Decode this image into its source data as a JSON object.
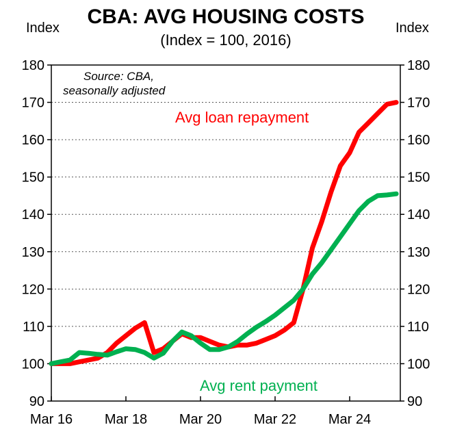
{
  "chart_data": {
    "type": "line",
    "title": "CBA: AVG HOUSING COSTS",
    "subtitle": "(Index = 100, 2016)",
    "ylabel_left": "Index",
    "ylabel_right": "Index",
    "source_note": [
      "Source: CBA,",
      "seasonally adjusted"
    ],
    "ylim": [
      90,
      180
    ],
    "yticks": [
      90,
      100,
      110,
      120,
      130,
      140,
      150,
      160,
      170,
      180
    ],
    "xlim": [
      2016.0,
      2025.25
    ],
    "xticks": [
      {
        "label": "Mar 16",
        "x": 2016.0
      },
      {
        "label": "Mar 18",
        "x": 2018.0
      },
      {
        "label": "Mar 20",
        "x": 2020.0
      },
      {
        "label": "Mar 22",
        "x": 2022.0
      },
      {
        "label": "Mar 24",
        "x": 2024.0
      }
    ],
    "grid": true,
    "series": [
      {
        "name": "Avg loan repayment",
        "color": "#ff0000",
        "label_position": "upper-middle",
        "points": [
          [
            2016.0,
            100.0
          ],
          [
            2016.25,
            100.0
          ],
          [
            2016.5,
            100.0
          ],
          [
            2016.75,
            100.5
          ],
          [
            2017.0,
            101.0
          ],
          [
            2017.25,
            101.5
          ],
          [
            2017.5,
            103.0
          ],
          [
            2017.75,
            105.5
          ],
          [
            2018.0,
            107.5
          ],
          [
            2018.25,
            109.5
          ],
          [
            2018.5,
            111.0
          ],
          [
            2018.75,
            103.0
          ],
          [
            2019.0,
            104.0
          ],
          [
            2019.25,
            106.0
          ],
          [
            2019.5,
            108.0
          ],
          [
            2019.75,
            107.0
          ],
          [
            2020.0,
            107.0
          ],
          [
            2020.25,
            106.0
          ],
          [
            2020.5,
            105.0
          ],
          [
            2020.75,
            104.5
          ],
          [
            2021.0,
            105.0
          ],
          [
            2021.25,
            105.0
          ],
          [
            2021.5,
            105.5
          ],
          [
            2021.75,
            106.5
          ],
          [
            2022.0,
            107.5
          ],
          [
            2022.25,
            109.0
          ],
          [
            2022.5,
            111.0
          ],
          [
            2022.75,
            120.0
          ],
          [
            2023.0,
            131.0
          ],
          [
            2023.25,
            138.0
          ],
          [
            2023.5,
            146.0
          ],
          [
            2023.75,
            153.0
          ],
          [
            2024.0,
            156.5
          ],
          [
            2024.25,
            162.0
          ],
          [
            2024.5,
            164.5
          ],
          [
            2024.75,
            167.0
          ],
          [
            2025.0,
            169.5
          ],
          [
            2025.25,
            170.0
          ]
        ]
      },
      {
        "name": "Avg rent payment",
        "color": "#00b050",
        "label_position": "bottom-right",
        "points": [
          [
            2016.0,
            100.0
          ],
          [
            2016.25,
            100.5
          ],
          [
            2016.5,
            101.0
          ],
          [
            2016.75,
            103.0
          ],
          [
            2017.0,
            102.8
          ],
          [
            2017.25,
            102.5
          ],
          [
            2017.5,
            102.3
          ],
          [
            2017.75,
            103.2
          ],
          [
            2018.0,
            104.0
          ],
          [
            2018.25,
            103.8
          ],
          [
            2018.5,
            103.0
          ],
          [
            2018.75,
            101.5
          ],
          [
            2019.0,
            102.8
          ],
          [
            2019.25,
            106.0
          ],
          [
            2019.5,
            108.5
          ],
          [
            2019.75,
            107.5
          ],
          [
            2020.0,
            105.5
          ],
          [
            2020.25,
            103.8
          ],
          [
            2020.5,
            103.8
          ],
          [
            2020.75,
            104.5
          ],
          [
            2021.0,
            106.0
          ],
          [
            2021.25,
            108.0
          ],
          [
            2021.5,
            109.8
          ],
          [
            2021.75,
            111.3
          ],
          [
            2022.0,
            113.0
          ],
          [
            2022.25,
            115.0
          ],
          [
            2022.5,
            117.0
          ],
          [
            2022.75,
            120.0
          ],
          [
            2023.0,
            124.0
          ],
          [
            2023.25,
            127.0
          ],
          [
            2023.5,
            130.5
          ],
          [
            2023.75,
            134.0
          ],
          [
            2024.0,
            137.5
          ],
          [
            2024.25,
            141.0
          ],
          [
            2024.5,
            143.5
          ],
          [
            2024.75,
            145.0
          ],
          [
            2025.0,
            145.2
          ],
          [
            2025.25,
            145.5
          ]
        ]
      }
    ]
  }
}
